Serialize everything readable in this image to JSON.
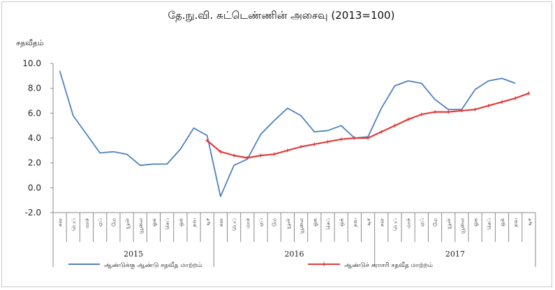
{
  "chart_data": {
    "type": "line",
    "title": "தே.நு.வி. சுட்டெண்ணின் அசைவு (2013=100)",
    "ylabel": "சதவீதம்",
    "ylim": [
      -2.0,
      10.0
    ],
    "yticks": [
      "10.0",
      "8.0",
      "6.0",
      "4.0",
      "2.0",
      "0.0",
      "-2.0"
    ],
    "months": [
      "சன",
      "பெப்",
      "மாச்",
      "ஏப்",
      "மே",
      "யூன்",
      "யூலை",
      "ஓக",
      "செப்",
      "ஒக்",
      "நவ",
      "டிச"
    ],
    "years": [
      "2015",
      "2016",
      "2017"
    ],
    "x": [
      "2015-01",
      "2015-02",
      "2015-03",
      "2015-04",
      "2015-05",
      "2015-06",
      "2015-07",
      "2015-08",
      "2015-09",
      "2015-10",
      "2015-11",
      "2015-12",
      "2016-01",
      "2016-02",
      "2016-03",
      "2016-04",
      "2016-05",
      "2016-06",
      "2016-07",
      "2016-08",
      "2016-09",
      "2016-10",
      "2016-11",
      "2016-12",
      "2017-01",
      "2017-02",
      "2017-03",
      "2017-04",
      "2017-05",
      "2017-06",
      "2017-07",
      "2017-08",
      "2017-09",
      "2017-10",
      "2017-11",
      "2017-12"
    ],
    "series": [
      {
        "name": "ஆண்டுக்கு ஆண்டு சதவீத மாற்றம்",
        "color": "#4f81bd",
        "values": [
          9.4,
          5.8,
          4.3,
          2.8,
          2.9,
          2.7,
          1.8,
          1.9,
          1.9,
          3.1,
          4.8,
          4.2,
          -0.7,
          1.8,
          2.3,
          4.3,
          5.4,
          6.4,
          5.8,
          4.5,
          4.6,
          5.0,
          4.0,
          4.1,
          6.4,
          8.2,
          8.6,
          8.4,
          7.1,
          6.3,
          6.3,
          7.9,
          8.6,
          8.8,
          8.4,
          null
        ]
      },
      {
        "name": "ஆண்டுச் சராசரி சதவீத மாற்றம்",
        "color": "#e23b3b",
        "values": [
          null,
          null,
          null,
          null,
          null,
          null,
          null,
          null,
          null,
          null,
          null,
          3.8,
          2.9,
          2.6,
          2.4,
          2.6,
          2.7,
          3.0,
          3.3,
          3.5,
          3.7,
          3.9,
          4.0,
          4.0,
          4.5,
          5.0,
          5.5,
          5.9,
          6.1,
          6.1,
          6.2,
          6.3,
          6.6,
          6.9,
          7.2,
          7.6
        ]
      }
    ],
    "grid": false,
    "legend": "bottom"
  }
}
